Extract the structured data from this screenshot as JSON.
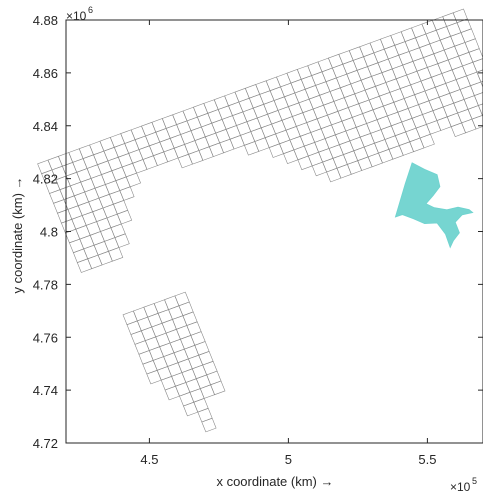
{
  "chart_data": {
    "type": "mesh",
    "title": "",
    "xlabel": "x coordinate (km) →",
    "ylabel": "y coordinate (km) →",
    "x_exponent_label": "×10",
    "x_exponent_power": "5",
    "y_exponent_label": "×10",
    "y_exponent_power": "6",
    "xlim": [
      420000,
      570000
    ],
    "ylim": [
      4720000,
      4880000
    ],
    "x_ticks": [
      450000,
      500000,
      550000
    ],
    "x_tick_labels": [
      "4.5",
      "5",
      "5.5"
    ],
    "y_ticks": [
      4720000,
      4740000,
      4760000,
      4780000,
      4800000,
      4820000,
      4840000,
      4860000,
      4880000
    ],
    "y_tick_labels": [
      "4.72",
      "4.74",
      "4.76",
      "4.78",
      "4.8",
      "4.82",
      "4.84",
      "4.86",
      "4.88"
    ],
    "grid": false,
    "mesh_color": "#8a8a8a",
    "lake_color": "#6fd3cf",
    "mesh": {
      "origin": [
        425500,
        4784500
      ],
      "along_dir": [
        0.934,
        0.357
      ],
      "across_dir": [
        -0.357,
        0.934
      ],
      "cell_size": 4000,
      "rows": 11,
      "col_row_span": [
        [
          0,
          10
        ],
        [
          0,
          10
        ],
        [
          0,
          10
        ],
        [
          0,
          10
        ],
        [
          1,
          10
        ],
        [
          3,
          10
        ],
        [
          5,
          10
        ],
        [
          6,
          10
        ],
        [
          7,
          10
        ],
        [
          7,
          10
        ],
        [
          7,
          10
        ],
        [
          7,
          10
        ],
        [
          6,
          10
        ],
        [
          6,
          10
        ],
        [
          6,
          10
        ],
        [
          6,
          10
        ],
        [
          6,
          10
        ],
        [
          6,
          10
        ],
        [
          5,
          10
        ],
        [
          5,
          10
        ],
        [
          4,
          10
        ],
        [
          3,
          10
        ],
        [
          2,
          10
        ],
        [
          1,
          10
        ],
        [
          0,
          10
        ],
        [
          0,
          10
        ],
        [
          0,
          10
        ],
        [
          0,
          10
        ],
        [
          0,
          10
        ],
        [
          0,
          10
        ],
        [
          0,
          10
        ],
        [
          0,
          10
        ],
        [
          0,
          10
        ],
        [
          0,
          10
        ],
        [
          1,
          10
        ],
        [
          1,
          10
        ],
        [
          0,
          10
        ],
        [
          0,
          10
        ],
        [
          0,
          10
        ],
        [
          0,
          10
        ],
        [
          1,
          10
        ]
      ],
      "protrusion": {
        "anchor": [
          440500,
          4768500
        ],
        "cols": [
          {
            "rows": 7
          },
          {
            "rows": 9
          },
          {
            "rows": 11
          },
          {
            "rows": 13
          },
          {
            "rows": 10
          },
          {
            "rows": 10
          }
        ]
      }
    },
    "lake_polygon": [
      [
        538500,
        4805500
      ],
      [
        542000,
        4818000
      ],
      [
        544500,
        4826000
      ],
      [
        549000,
        4823500
      ],
      [
        553500,
        4821500
      ],
      [
        554500,
        4817000
      ],
      [
        552000,
        4813500
      ],
      [
        549500,
        4810500
      ],
      [
        552500,
        4809000
      ],
      [
        557000,
        4808200
      ],
      [
        561000,
        4809200
      ],
      [
        565000,
        4808300
      ],
      [
        566300,
        4807200
      ],
      [
        562500,
        4806300
      ],
      [
        560000,
        4803500
      ],
      [
        561500,
        4799500
      ],
      [
        559300,
        4796500
      ],
      [
        558200,
        4794000
      ],
      [
        556500,
        4799000
      ],
      [
        553500,
        4803200
      ],
      [
        549000,
        4803000
      ],
      [
        545000,
        4804800
      ],
      [
        541000,
        4806400
      ]
    ]
  }
}
